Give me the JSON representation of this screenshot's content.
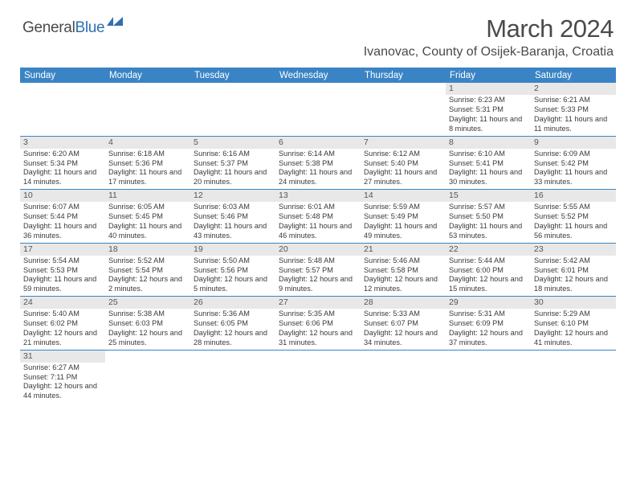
{
  "logo": {
    "general": "General",
    "blue": "Blue"
  },
  "title": "March 2024",
  "location": "Ivanovac, County of Osijek-Baranja, Croatia",
  "colors": {
    "header_bg": "#3a84c5",
    "header_text": "#ffffff",
    "daynum_bg": "#e8e8e8",
    "text": "#3a3a3a",
    "logo_blue": "#2f6fb0",
    "week_border": "#3a84c5"
  },
  "day_names": [
    "Sunday",
    "Monday",
    "Tuesday",
    "Wednesday",
    "Thursday",
    "Friday",
    "Saturday"
  ],
  "weeks": [
    [
      {
        "num": "",
        "sunrise": "",
        "sunset": "",
        "daylight": ""
      },
      {
        "num": "",
        "sunrise": "",
        "sunset": "",
        "daylight": ""
      },
      {
        "num": "",
        "sunrise": "",
        "sunset": "",
        "daylight": ""
      },
      {
        "num": "",
        "sunrise": "",
        "sunset": "",
        "daylight": ""
      },
      {
        "num": "",
        "sunrise": "",
        "sunset": "",
        "daylight": ""
      },
      {
        "num": "1",
        "sunrise": "Sunrise: 6:23 AM",
        "sunset": "Sunset: 5:31 PM",
        "daylight": "Daylight: 11 hours and 8 minutes."
      },
      {
        "num": "2",
        "sunrise": "Sunrise: 6:21 AM",
        "sunset": "Sunset: 5:33 PM",
        "daylight": "Daylight: 11 hours and 11 minutes."
      }
    ],
    [
      {
        "num": "3",
        "sunrise": "Sunrise: 6:20 AM",
        "sunset": "Sunset: 5:34 PM",
        "daylight": "Daylight: 11 hours and 14 minutes."
      },
      {
        "num": "4",
        "sunrise": "Sunrise: 6:18 AM",
        "sunset": "Sunset: 5:36 PM",
        "daylight": "Daylight: 11 hours and 17 minutes."
      },
      {
        "num": "5",
        "sunrise": "Sunrise: 6:16 AM",
        "sunset": "Sunset: 5:37 PM",
        "daylight": "Daylight: 11 hours and 20 minutes."
      },
      {
        "num": "6",
        "sunrise": "Sunrise: 6:14 AM",
        "sunset": "Sunset: 5:38 PM",
        "daylight": "Daylight: 11 hours and 24 minutes."
      },
      {
        "num": "7",
        "sunrise": "Sunrise: 6:12 AM",
        "sunset": "Sunset: 5:40 PM",
        "daylight": "Daylight: 11 hours and 27 minutes."
      },
      {
        "num": "8",
        "sunrise": "Sunrise: 6:10 AM",
        "sunset": "Sunset: 5:41 PM",
        "daylight": "Daylight: 11 hours and 30 minutes."
      },
      {
        "num": "9",
        "sunrise": "Sunrise: 6:09 AM",
        "sunset": "Sunset: 5:42 PM",
        "daylight": "Daylight: 11 hours and 33 minutes."
      }
    ],
    [
      {
        "num": "10",
        "sunrise": "Sunrise: 6:07 AM",
        "sunset": "Sunset: 5:44 PM",
        "daylight": "Daylight: 11 hours and 36 minutes."
      },
      {
        "num": "11",
        "sunrise": "Sunrise: 6:05 AM",
        "sunset": "Sunset: 5:45 PM",
        "daylight": "Daylight: 11 hours and 40 minutes."
      },
      {
        "num": "12",
        "sunrise": "Sunrise: 6:03 AM",
        "sunset": "Sunset: 5:46 PM",
        "daylight": "Daylight: 11 hours and 43 minutes."
      },
      {
        "num": "13",
        "sunrise": "Sunrise: 6:01 AM",
        "sunset": "Sunset: 5:48 PM",
        "daylight": "Daylight: 11 hours and 46 minutes."
      },
      {
        "num": "14",
        "sunrise": "Sunrise: 5:59 AM",
        "sunset": "Sunset: 5:49 PM",
        "daylight": "Daylight: 11 hours and 49 minutes."
      },
      {
        "num": "15",
        "sunrise": "Sunrise: 5:57 AM",
        "sunset": "Sunset: 5:50 PM",
        "daylight": "Daylight: 11 hours and 53 minutes."
      },
      {
        "num": "16",
        "sunrise": "Sunrise: 5:55 AM",
        "sunset": "Sunset: 5:52 PM",
        "daylight": "Daylight: 11 hours and 56 minutes."
      }
    ],
    [
      {
        "num": "17",
        "sunrise": "Sunrise: 5:54 AM",
        "sunset": "Sunset: 5:53 PM",
        "daylight": "Daylight: 11 hours and 59 minutes."
      },
      {
        "num": "18",
        "sunrise": "Sunrise: 5:52 AM",
        "sunset": "Sunset: 5:54 PM",
        "daylight": "Daylight: 12 hours and 2 minutes."
      },
      {
        "num": "19",
        "sunrise": "Sunrise: 5:50 AM",
        "sunset": "Sunset: 5:56 PM",
        "daylight": "Daylight: 12 hours and 5 minutes."
      },
      {
        "num": "20",
        "sunrise": "Sunrise: 5:48 AM",
        "sunset": "Sunset: 5:57 PM",
        "daylight": "Daylight: 12 hours and 9 minutes."
      },
      {
        "num": "21",
        "sunrise": "Sunrise: 5:46 AM",
        "sunset": "Sunset: 5:58 PM",
        "daylight": "Daylight: 12 hours and 12 minutes."
      },
      {
        "num": "22",
        "sunrise": "Sunrise: 5:44 AM",
        "sunset": "Sunset: 6:00 PM",
        "daylight": "Daylight: 12 hours and 15 minutes."
      },
      {
        "num": "23",
        "sunrise": "Sunrise: 5:42 AM",
        "sunset": "Sunset: 6:01 PM",
        "daylight": "Daylight: 12 hours and 18 minutes."
      }
    ],
    [
      {
        "num": "24",
        "sunrise": "Sunrise: 5:40 AM",
        "sunset": "Sunset: 6:02 PM",
        "daylight": "Daylight: 12 hours and 21 minutes."
      },
      {
        "num": "25",
        "sunrise": "Sunrise: 5:38 AM",
        "sunset": "Sunset: 6:03 PM",
        "daylight": "Daylight: 12 hours and 25 minutes."
      },
      {
        "num": "26",
        "sunrise": "Sunrise: 5:36 AM",
        "sunset": "Sunset: 6:05 PM",
        "daylight": "Daylight: 12 hours and 28 minutes."
      },
      {
        "num": "27",
        "sunrise": "Sunrise: 5:35 AM",
        "sunset": "Sunset: 6:06 PM",
        "daylight": "Daylight: 12 hours and 31 minutes."
      },
      {
        "num": "28",
        "sunrise": "Sunrise: 5:33 AM",
        "sunset": "Sunset: 6:07 PM",
        "daylight": "Daylight: 12 hours and 34 minutes."
      },
      {
        "num": "29",
        "sunrise": "Sunrise: 5:31 AM",
        "sunset": "Sunset: 6:09 PM",
        "daylight": "Daylight: 12 hours and 37 minutes."
      },
      {
        "num": "30",
        "sunrise": "Sunrise: 5:29 AM",
        "sunset": "Sunset: 6:10 PM",
        "daylight": "Daylight: 12 hours and 41 minutes."
      }
    ],
    [
      {
        "num": "31",
        "sunrise": "Sunrise: 6:27 AM",
        "sunset": "Sunset: 7:11 PM",
        "daylight": "Daylight: 12 hours and 44 minutes."
      },
      {
        "num": "",
        "sunrise": "",
        "sunset": "",
        "daylight": ""
      },
      {
        "num": "",
        "sunrise": "",
        "sunset": "",
        "daylight": ""
      },
      {
        "num": "",
        "sunrise": "",
        "sunset": "",
        "daylight": ""
      },
      {
        "num": "",
        "sunrise": "",
        "sunset": "",
        "daylight": ""
      },
      {
        "num": "",
        "sunrise": "",
        "sunset": "",
        "daylight": ""
      },
      {
        "num": "",
        "sunrise": "",
        "sunset": "",
        "daylight": ""
      }
    ]
  ]
}
